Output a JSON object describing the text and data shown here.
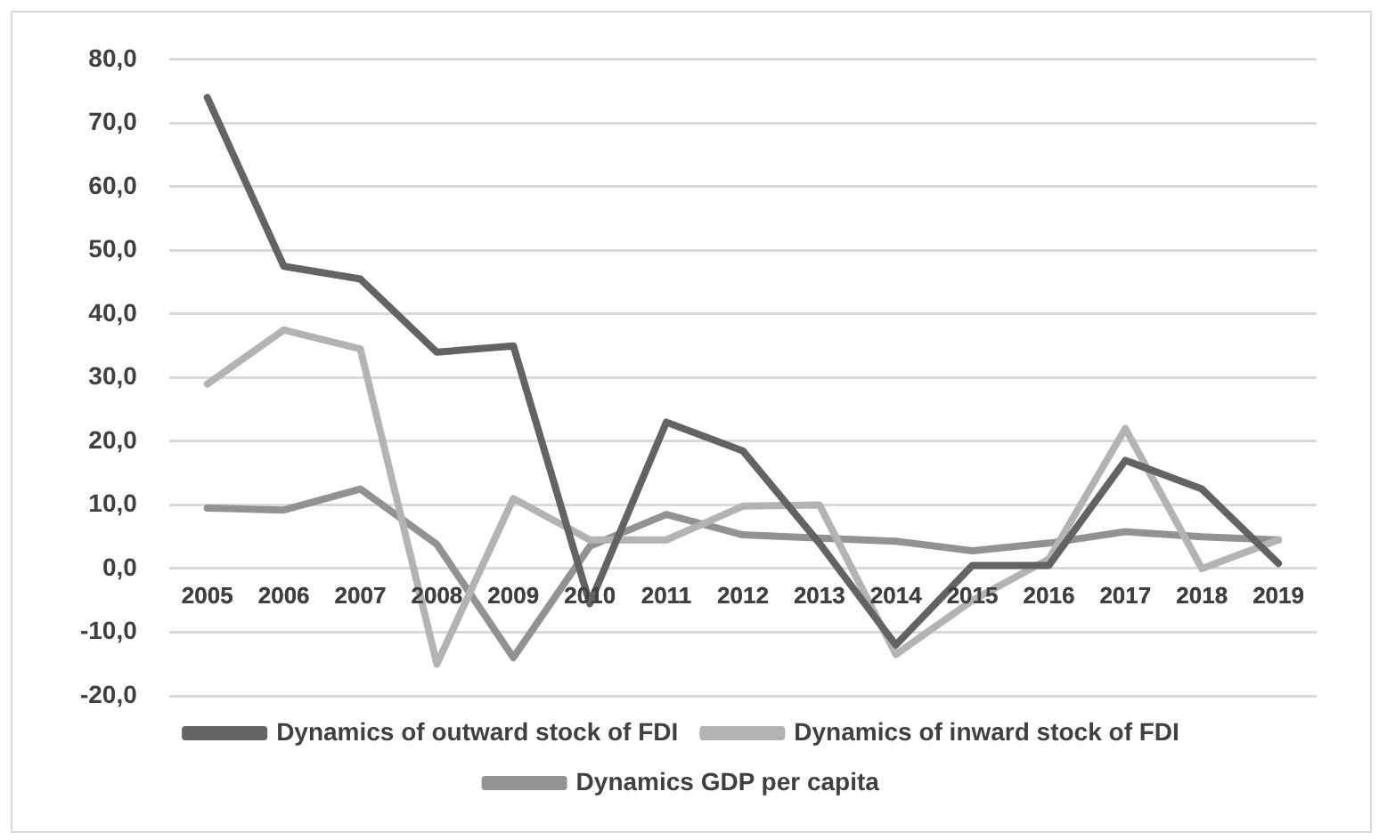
{
  "chart_data": {
    "type": "line",
    "categories": [
      "2005",
      "2006",
      "2007",
      "2008",
      "2009",
      "2010",
      "2011",
      "2012",
      "2013",
      "2014",
      "2015",
      "2016",
      "2017",
      "2018",
      "2019"
    ],
    "series": [
      {
        "name": "Dynamics of outward stock of FDI",
        "color": "#636363",
        "values": [
          74,
          47.5,
          45.5,
          34,
          35,
          -5.5,
          23,
          18.5,
          4,
          -12,
          0.5,
          0.5,
          17,
          12.5,
          0.8
        ]
      },
      {
        "name": "Dynamics of inward stock of FDI",
        "color": "#b3b3b3",
        "values": [
          29,
          37.5,
          34.5,
          -15,
          11,
          4.5,
          4.5,
          9.8,
          10,
          -13.5,
          -5,
          1.5,
          22,
          0,
          4.5
        ]
      },
      {
        "name": "Dynamics GDP per capita",
        "color": "#929292",
        "values": [
          9.5,
          9.2,
          12.5,
          3.8,
          -14,
          3.5,
          8.5,
          5.3,
          4.8,
          4.3,
          2.8,
          4,
          5.8,
          5,
          4.5
        ]
      }
    ],
    "ylim": [
      -20,
      80
    ],
    "yticks": [
      {
        "value": -20,
        "label": "-20,0"
      },
      {
        "value": -10,
        "label": "-10,0"
      },
      {
        "value": 0,
        "label": "0,0"
      },
      {
        "value": 10,
        "label": "10,0"
      },
      {
        "value": 20,
        "label": "20,0"
      },
      {
        "value": 30,
        "label": "30,0"
      },
      {
        "value": 40,
        "label": "40,0"
      },
      {
        "value": 50,
        "label": "50,0"
      },
      {
        "value": 60,
        "label": "60,0"
      },
      {
        "value": 70,
        "label": "70,0"
      },
      {
        "value": 80,
        "label": "80,0"
      }
    ],
    "grid": "y",
    "legend": "bottom",
    "marker": "none",
    "line_style": "solid"
  }
}
